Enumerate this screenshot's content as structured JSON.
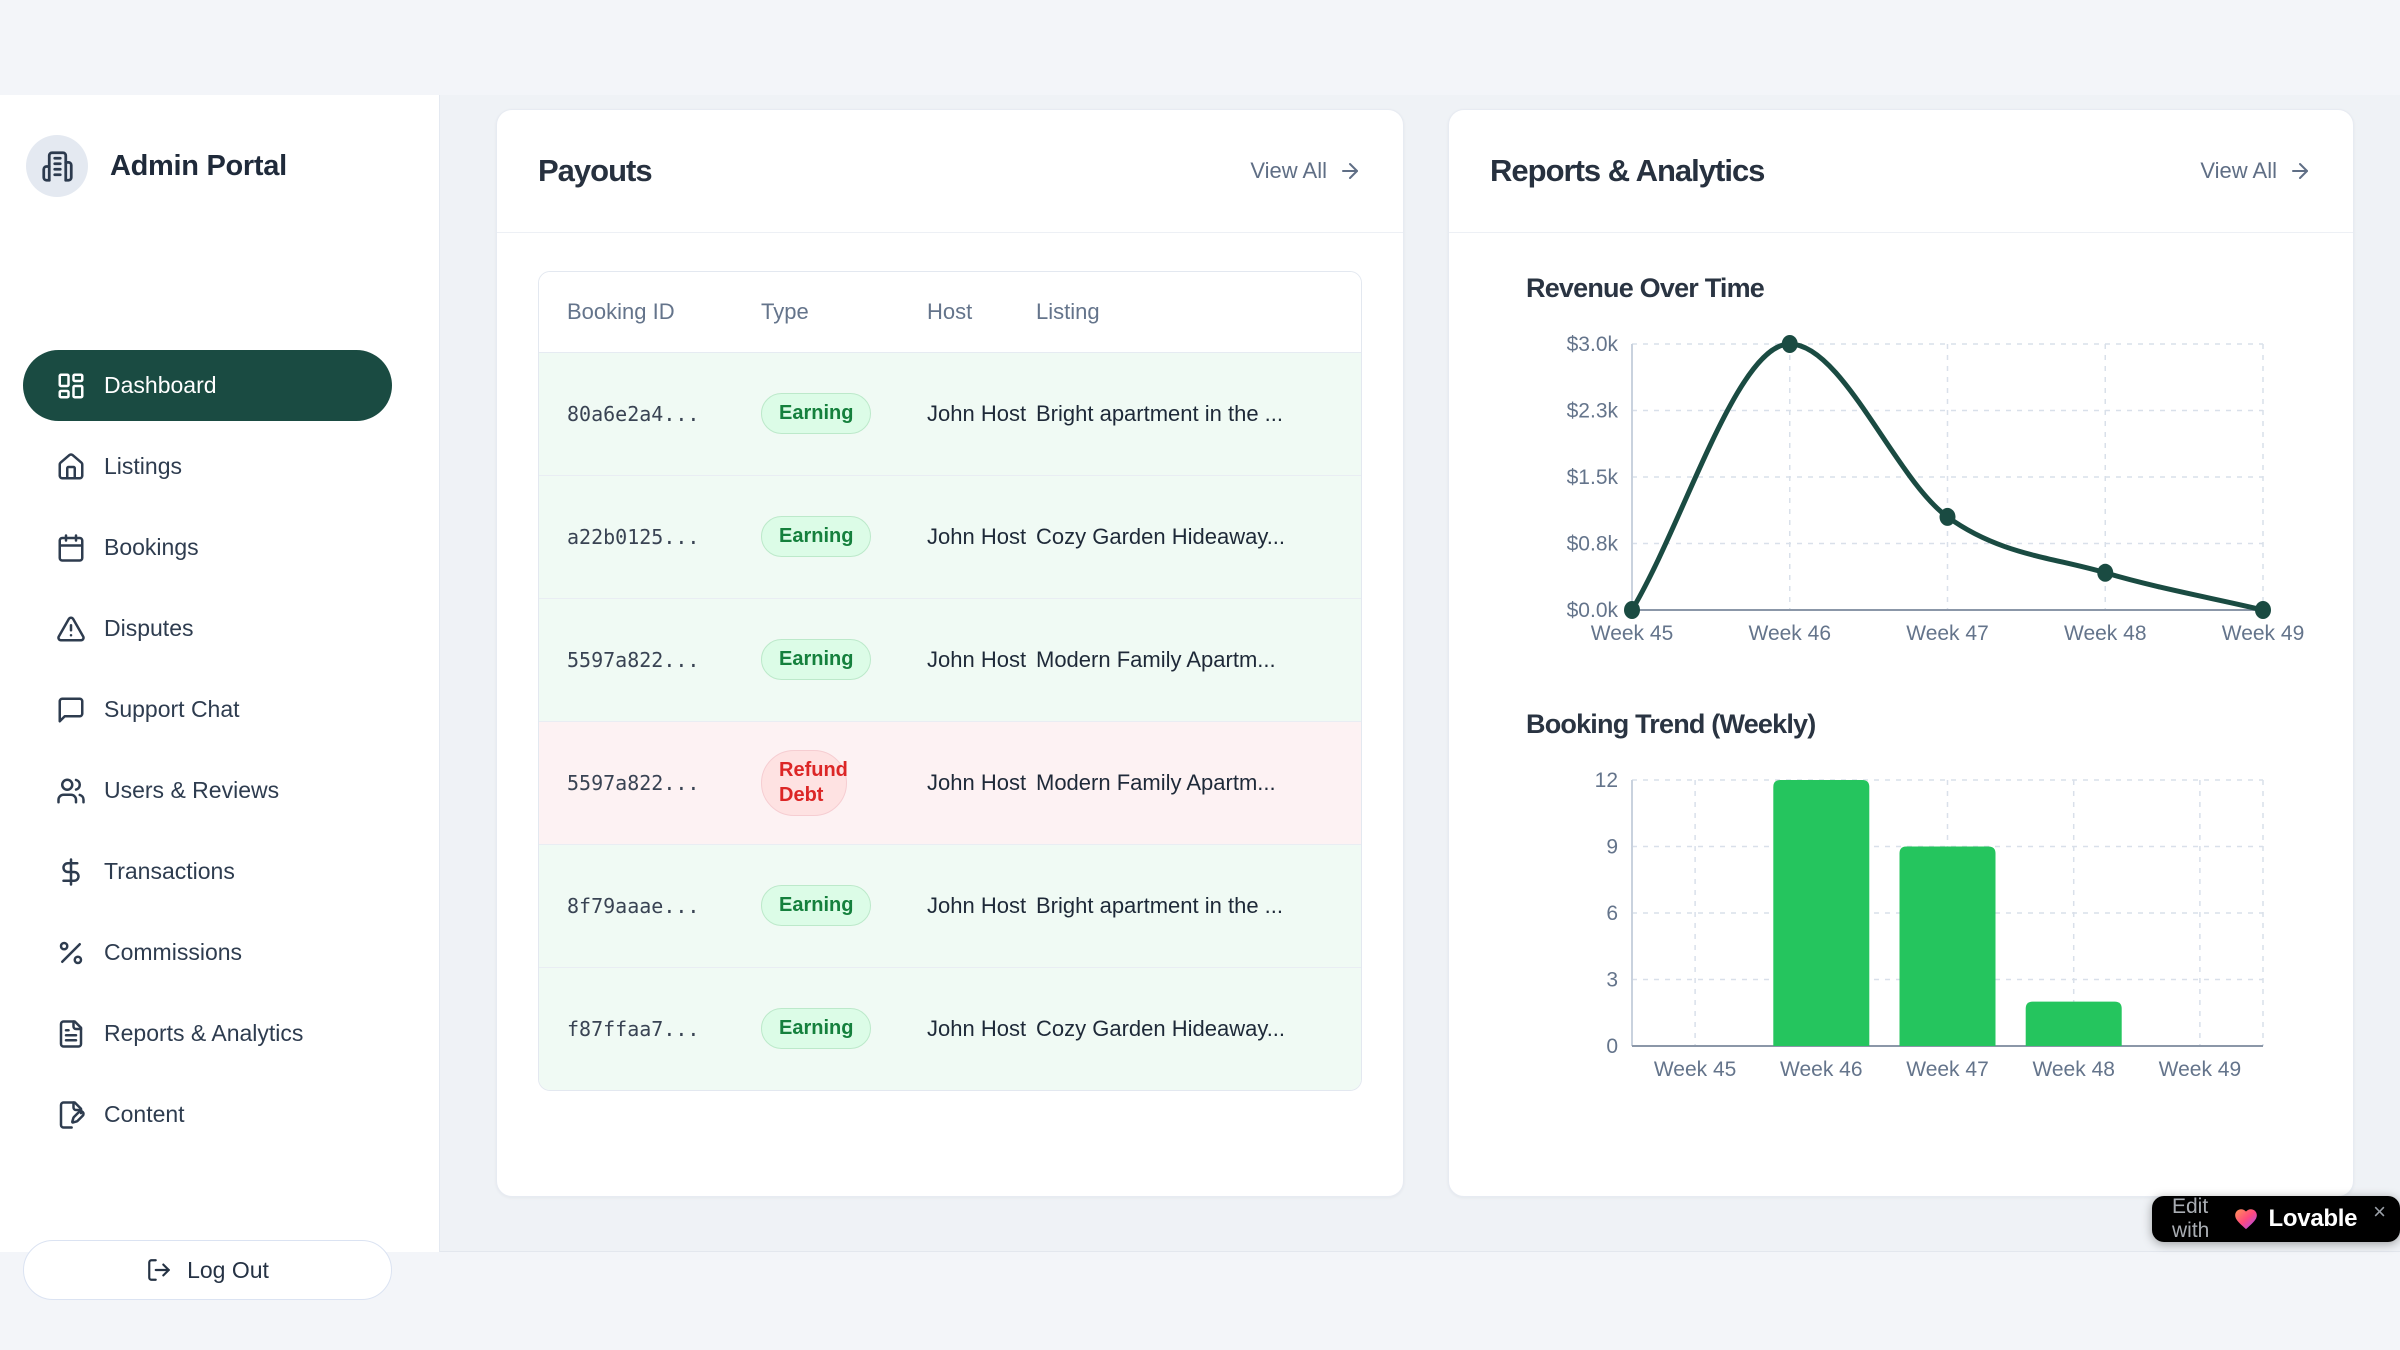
{
  "sidebar": {
    "brand": "Admin Portal",
    "brand_icon": "building-icon",
    "items": [
      {
        "label": "Dashboard",
        "icon": "dashboard-icon",
        "active": true
      },
      {
        "label": "Listings",
        "icon": "home-icon",
        "active": false
      },
      {
        "label": "Bookings",
        "icon": "calendar-icon",
        "active": false
      },
      {
        "label": "Disputes",
        "icon": "alert-triangle-icon",
        "active": false
      },
      {
        "label": "Support Chat",
        "icon": "message-square-icon",
        "active": false
      },
      {
        "label": "Users & Reviews",
        "icon": "users-icon",
        "active": false
      },
      {
        "label": "Transactions",
        "icon": "dollar-sign-icon",
        "active": false
      },
      {
        "label": "Commissions",
        "icon": "percent-icon",
        "active": false
      },
      {
        "label": "Reports & Analytics",
        "icon": "file-text-icon",
        "active": false
      },
      {
        "label": "Content",
        "icon": "file-pen-icon",
        "active": false
      }
    ],
    "logout_label": "Log Out",
    "logout_icon": "log-out-icon"
  },
  "payouts": {
    "title": "Payouts",
    "view_all": "View All",
    "view_all_icon": "arrow-right-icon",
    "table": {
      "columns": [
        "Booking ID",
        "Type",
        "Host",
        "Listing"
      ],
      "rows": [
        {
          "booking_id": "80a6e2a4...",
          "type": "Earning",
          "status": "earning",
          "host": "John Host",
          "listing": "Bright apartment in the ..."
        },
        {
          "booking_id": "a22b0125...",
          "type": "Earning",
          "status": "earning",
          "host": "John Host",
          "listing": "Cozy Garden Hideaway..."
        },
        {
          "booking_id": "5597a822...",
          "type": "Earning",
          "status": "earning",
          "host": "John Host",
          "listing": "Modern Family Apartm..."
        },
        {
          "booking_id": "5597a822...",
          "type": "Refund Debt",
          "status": "refund",
          "host": "John Host",
          "listing": "Modern Family Apartm..."
        },
        {
          "booking_id": "8f79aaae...",
          "type": "Earning",
          "status": "earning",
          "host": "John Host",
          "listing": "Bright apartment in the ..."
        },
        {
          "booking_id": "f87ffaa7...",
          "type": "Earning",
          "status": "earning",
          "host": "John Host",
          "listing": "Cozy Garden Hideaway..."
        }
      ]
    }
  },
  "reports": {
    "title": "Reports & Analytics",
    "view_all": "View All",
    "view_all_icon": "arrow-right-icon"
  },
  "chart_data": [
    {
      "type": "line",
      "title": "Revenue Over Time",
      "x": [
        "Week 45",
        "Week 46",
        "Week 47",
        "Week 48",
        "Week 49"
      ],
      "values": [
        0,
        3000,
        1050,
        420,
        0
      ],
      "y_ticks": [
        0,
        750,
        1500,
        2250,
        3000
      ],
      "y_tick_labels": [
        "$0.0k",
        "$0.8k",
        "$1.5k",
        "$2.3k",
        "$3.0k"
      ],
      "ylim": [
        0,
        3000
      ],
      "xlabel": "",
      "ylabel": "",
      "grid": true,
      "legend": false,
      "line_color": "#1a4b42"
    },
    {
      "type": "bar",
      "title": "Booking Trend (Weekly)",
      "categories": [
        "Week 45",
        "Week 46",
        "Week 47",
        "Week 48",
        "Week 49"
      ],
      "values": [
        0,
        12,
        9,
        2,
        0
      ],
      "y_ticks": [
        0,
        3,
        6,
        9,
        12
      ],
      "y_tick_labels": [
        "0",
        "3",
        "6",
        "9",
        "12"
      ],
      "ylim": [
        0,
        12
      ],
      "xlabel": "",
      "ylabel": "",
      "grid": true,
      "legend": false,
      "bar_color": "#25c55e"
    }
  ],
  "badge": {
    "prefix": "Edit with",
    "brand": "Lovable",
    "heart_icon": "heart-icon",
    "close": "×"
  },
  "colors": {
    "primary": "#1a4b42",
    "badge_green_bg": "#dcfce7",
    "badge_green_text": "#15803d",
    "badge_red_bg": "#fee2e2",
    "badge_red_text": "#dc2626",
    "row_green_bg": "#f0faf4",
    "row_red_bg": "#fdf2f3",
    "badge_black": "#000000"
  }
}
